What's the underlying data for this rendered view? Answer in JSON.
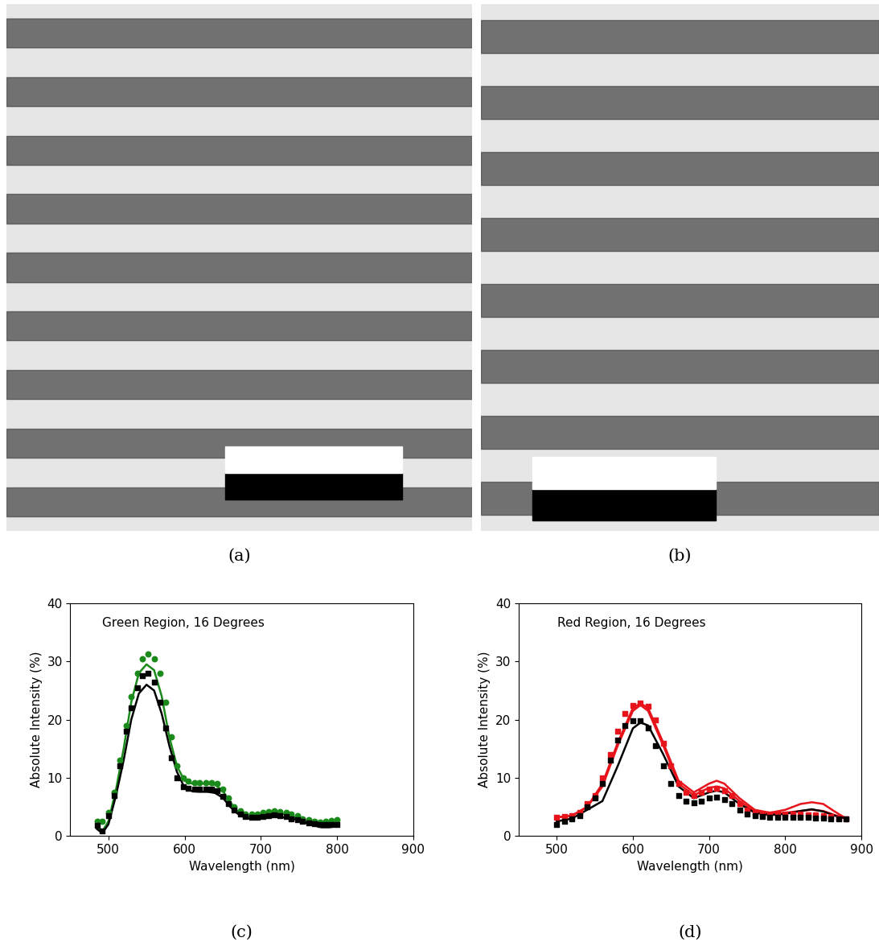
{
  "images": [
    {
      "caption": "(a)"
    },
    {
      "caption": "(b)"
    }
  ],
  "chart_data": [
    {
      "type": "line",
      "caption": "(c)",
      "title": "Green Region, 16 Degrees",
      "xlabel": "Wavelength (nm)",
      "ylabel": "Absolute Intensity (%)",
      "xlim": [
        450,
        900
      ],
      "xticks": [
        500,
        600,
        700,
        800,
        900
      ],
      "ylim": [
        0,
        40
      ],
      "yticks": [
        0,
        10,
        20,
        30,
        40
      ],
      "grid": false,
      "series": [
        {
          "type": "scatter",
          "color": "#1a8a1a",
          "marker": "circle",
          "x": [
            485,
            492,
            500,
            508,
            515,
            523,
            530,
            538,
            545,
            552,
            560,
            568,
            575,
            583,
            590,
            598,
            605,
            613,
            620,
            628,
            635,
            643,
            650,
            658,
            665,
            673,
            680,
            688,
            695,
            703,
            710,
            718,
            725,
            733,
            740,
            748,
            755,
            763,
            770,
            778,
            785,
            793,
            800
          ],
          "values": [
            2.5,
            2.5,
            4,
            7.5,
            13,
            19,
            24,
            28,
            30.5,
            31.3,
            30.5,
            28,
            23,
            17,
            12,
            10,
            9.5,
            9.2,
            9.2,
            9.2,
            9.2,
            9,
            8,
            6.5,
            5,
            4.3,
            3.8,
            3.8,
            3.8,
            4,
            4.2,
            4.3,
            4.2,
            4,
            3.8,
            3.5,
            3,
            2.8,
            2.5,
            2.4,
            2.5,
            2.6,
            2.8
          ]
        },
        {
          "type": "scatter",
          "color": "#000000",
          "marker": "square",
          "x": [
            485,
            492,
            500,
            508,
            515,
            523,
            530,
            538,
            545,
            552,
            560,
            568,
            575,
            583,
            590,
            598,
            605,
            613,
            620,
            628,
            635,
            643,
            650,
            658,
            665,
            673,
            680,
            688,
            695,
            703,
            710,
            718,
            725,
            733,
            740,
            748,
            755,
            763,
            770,
            778,
            785,
            793,
            800
          ],
          "values": [
            1.8,
            0.8,
            3.5,
            7,
            12,
            18,
            22,
            25.5,
            27.5,
            28,
            26.5,
            23,
            18.5,
            13.5,
            10,
            8.5,
            8.2,
            8,
            8,
            8,
            8,
            7.8,
            6.8,
            5.5,
            4.5,
            3.8,
            3.3,
            3.2,
            3.2,
            3.3,
            3.5,
            3.6,
            3.5,
            3.3,
            3,
            2.8,
            2.5,
            2.3,
            2.1,
            2,
            2,
            2,
            2
          ]
        },
        {
          "type": "line",
          "color": "#1a8a1a",
          "line_style": "solid",
          "x": [
            485,
            492,
            500,
            510,
            520,
            530,
            540,
            550,
            560,
            570,
            580,
            590,
            600,
            610,
            620,
            630,
            640,
            650,
            660,
            670,
            680,
            690,
            700,
            710,
            720,
            730,
            740,
            750,
            760,
            770,
            780,
            790,
            800
          ],
          "values": [
            1.5,
            0.8,
            2.5,
            8,
            15,
            23,
            28,
            29.5,
            28.5,
            24,
            17,
            12,
            9.5,
            9,
            9,
            9,
            8.8,
            7.8,
            5.8,
            4.2,
            3.4,
            3.3,
            3.5,
            3.8,
            4,
            3.8,
            3.4,
            3,
            2.5,
            2.1,
            1.8,
            1.8,
            2
          ]
        },
        {
          "type": "line",
          "color": "#000000",
          "line_style": "solid",
          "x": [
            485,
            492,
            500,
            510,
            520,
            530,
            540,
            550,
            560,
            570,
            580,
            590,
            600,
            610,
            620,
            630,
            640,
            650,
            660,
            670,
            680,
            690,
            700,
            710,
            720,
            730,
            740,
            750,
            760,
            770,
            780,
            790,
            800
          ],
          "values": [
            1.2,
            0.5,
            2,
            7,
            13,
            20,
            24.5,
            26,
            25,
            21,
            15.5,
            11,
            8.3,
            7.7,
            7.6,
            7.6,
            7.4,
            6.6,
            5,
            3.8,
            3.1,
            2.9,
            3,
            3.2,
            3.3,
            3.2,
            3,
            2.7,
            2.2,
            1.8,
            1.5,
            1.5,
            1.7
          ]
        }
      ]
    },
    {
      "type": "line",
      "caption": "(d)",
      "title": "Red Region, 16 Degrees",
      "xlabel": "Wavelength (nm)",
      "ylabel": "Absolute Intensity (%)",
      "xlim": [
        450,
        900
      ],
      "xticks": [
        500,
        600,
        700,
        800,
        900
      ],
      "ylim": [
        0,
        40
      ],
      "yticks": [
        0,
        10,
        20,
        30,
        40
      ],
      "grid": false,
      "series": [
        {
          "type": "scatter",
          "color": "#e8141c",
          "marker": "square",
          "x": [
            500,
            510,
            520,
            530,
            540,
            550,
            560,
            570,
            580,
            590,
            600,
            610,
            620,
            630,
            640,
            650,
            660,
            670,
            680,
            690,
            700,
            710,
            720,
            730,
            740,
            750,
            760,
            770,
            780,
            790,
            800,
            810,
            820,
            830,
            840,
            850,
            860,
            870,
            880
          ],
          "values": [
            3.2,
            3.3,
            3.5,
            4,
            5.5,
            7,
            10,
            14,
            18,
            21,
            22.5,
            22.8,
            22.3,
            20,
            16,
            12,
            9,
            7.5,
            7,
            7.5,
            8,
            8.2,
            7.8,
            7,
            5.5,
            4.5,
            4,
            3.8,
            3.8,
            3.8,
            3.8,
            3.8,
            3.8,
            3.7,
            3.6,
            3.5,
            3.3,
            3.1,
            3
          ]
        },
        {
          "type": "scatter",
          "color": "#000000",
          "marker": "square",
          "x": [
            500,
            510,
            520,
            530,
            540,
            550,
            560,
            570,
            580,
            590,
            600,
            610,
            620,
            630,
            640,
            650,
            660,
            670,
            680,
            690,
            700,
            710,
            720,
            730,
            740,
            750,
            760,
            770,
            780,
            790,
            800,
            810,
            820,
            830,
            840,
            850,
            860,
            870,
            880
          ],
          "values": [
            2,
            2.5,
            3,
            3.5,
            5,
            6.5,
            9,
            13,
            16.5,
            19,
            19.8,
            19.8,
            18.5,
            15.5,
            12,
            9,
            7,
            6,
            5.7,
            6,
            6.5,
            6.7,
            6.3,
            5.5,
            4.5,
            3.8,
            3.5,
            3.3,
            3.2,
            3.2,
            3.2,
            3.2,
            3.2,
            3.2,
            3.1,
            3.1,
            3,
            3,
            3
          ]
        },
        {
          "type": "line",
          "color": "#e8141c",
          "line_style": "solid",
          "x": [
            500,
            520,
            540,
            560,
            580,
            600,
            610,
            620,
            640,
            660,
            680,
            700,
            710,
            720,
            740,
            760,
            780,
            800,
            820,
            835,
            850,
            865,
            880
          ],
          "values": [
            3.2,
            3.5,
            5,
            9,
            16,
            22,
            22.8,
            22,
            16,
            9.5,
            7.5,
            9,
            9.5,
            9,
            6.5,
            4.5,
            4,
            4.5,
            5.5,
            5.8,
            5.5,
            4.2,
            3
          ]
        },
        {
          "type": "line",
          "color": "#e8141c",
          "line_style": "solid",
          "x": [
            500,
            520,
            540,
            560,
            580,
            600,
            610,
            620,
            640,
            660,
            680,
            700,
            710,
            720,
            740,
            760,
            780,
            800,
            820,
            835,
            850,
            865,
            880
          ],
          "values": [
            3.2,
            3.5,
            5,
            8.5,
            15.5,
            21.5,
            22.5,
            21.5,
            15.5,
            9,
            7,
            8.3,
            8.5,
            8.2,
            6,
            4.2,
            3.8,
            4,
            4.3,
            4.5,
            4.3,
            3.6,
            3
          ]
        },
        {
          "type": "line",
          "color": "#000000",
          "line_style": "solid",
          "x": [
            500,
            520,
            540,
            560,
            580,
            600,
            610,
            620,
            640,
            660,
            680,
            700,
            710,
            720,
            740,
            760,
            780,
            800,
            820,
            835,
            850,
            865,
            880
          ],
          "values": [
            2.5,
            3,
            4.5,
            6,
            12,
            18.5,
            19.5,
            19,
            14,
            8.5,
            6.5,
            7.5,
            7.8,
            7.5,
            5.5,
            4,
            3.6,
            3.8,
            4.3,
            4.6,
            4.2,
            3.5,
            3
          ]
        }
      ]
    }
  ]
}
